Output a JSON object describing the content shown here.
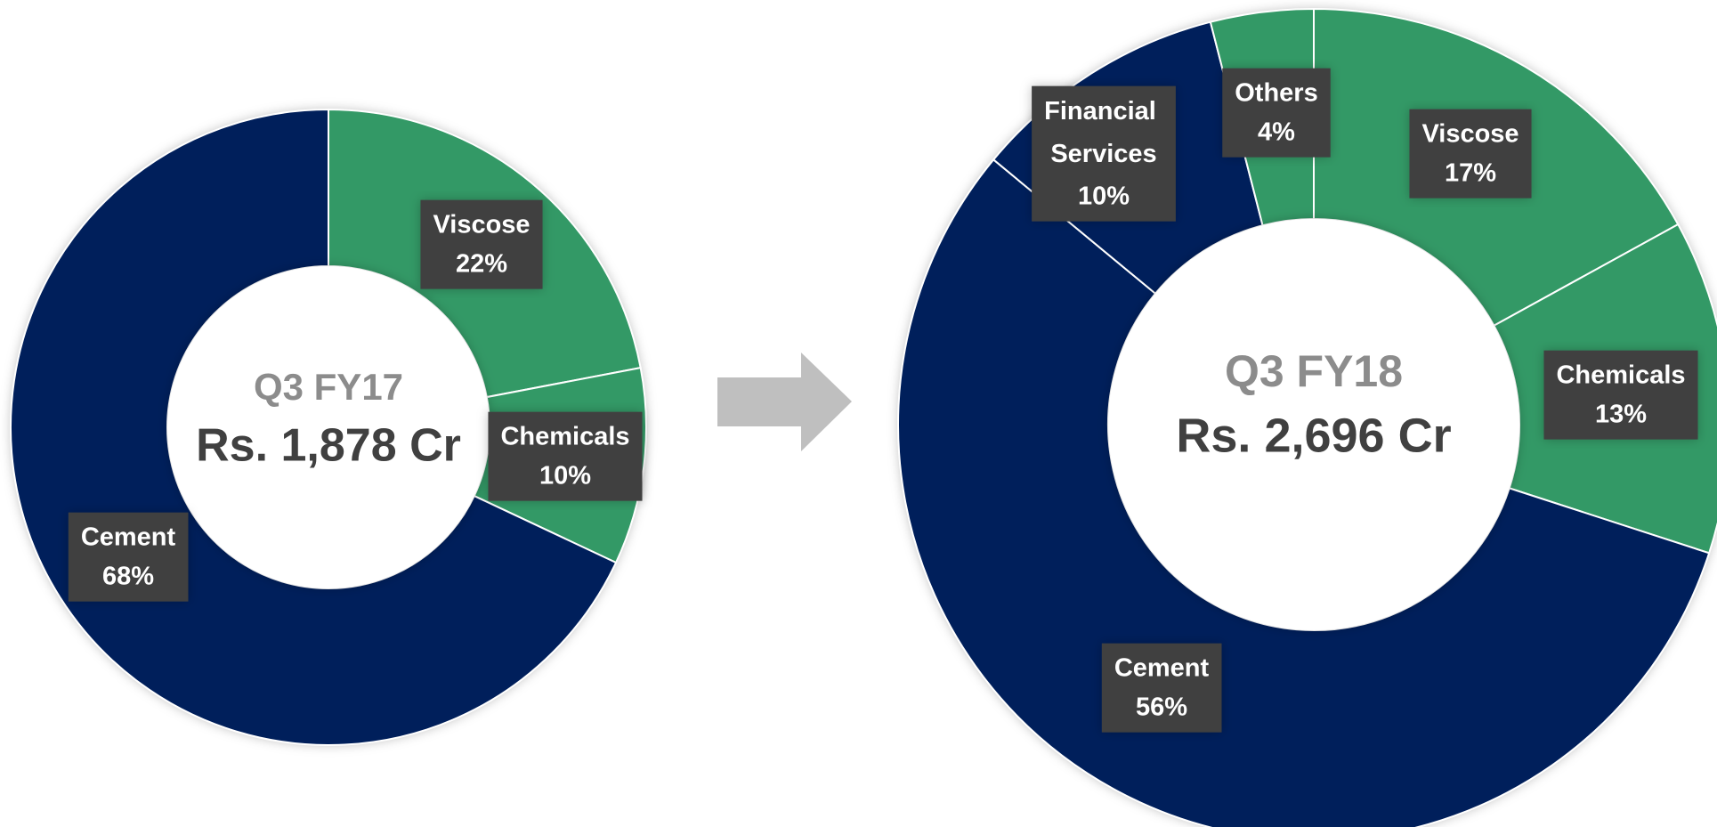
{
  "chart_data": [
    {
      "type": "donut",
      "title": "Q3 FY17",
      "subtitle": "Rs. 1,878 Cr",
      "categories": [
        "Viscose",
        "Chemicals",
        "Cement"
      ],
      "values": [
        22,
        10,
        68
      ],
      "value_labels": [
        "22%",
        "10%",
        "68%"
      ],
      "colors": [
        "#339966",
        "#339966",
        "#001f5b"
      ]
    },
    {
      "type": "donut",
      "title": "Q3 FY18",
      "subtitle": "Rs. 2,696 Cr",
      "categories": [
        "Viscose",
        "Chemicals",
        "Cement",
        "Financial Services",
        "Others"
      ],
      "values": [
        17,
        13,
        56,
        10,
        4
      ],
      "value_labels": [
        "17%",
        "13%",
        "56%",
        "10%",
        "4%"
      ],
      "colors": [
        "#339966",
        "#339966",
        "#001f5b",
        "#001f5b",
        "#339966"
      ]
    }
  ]
}
